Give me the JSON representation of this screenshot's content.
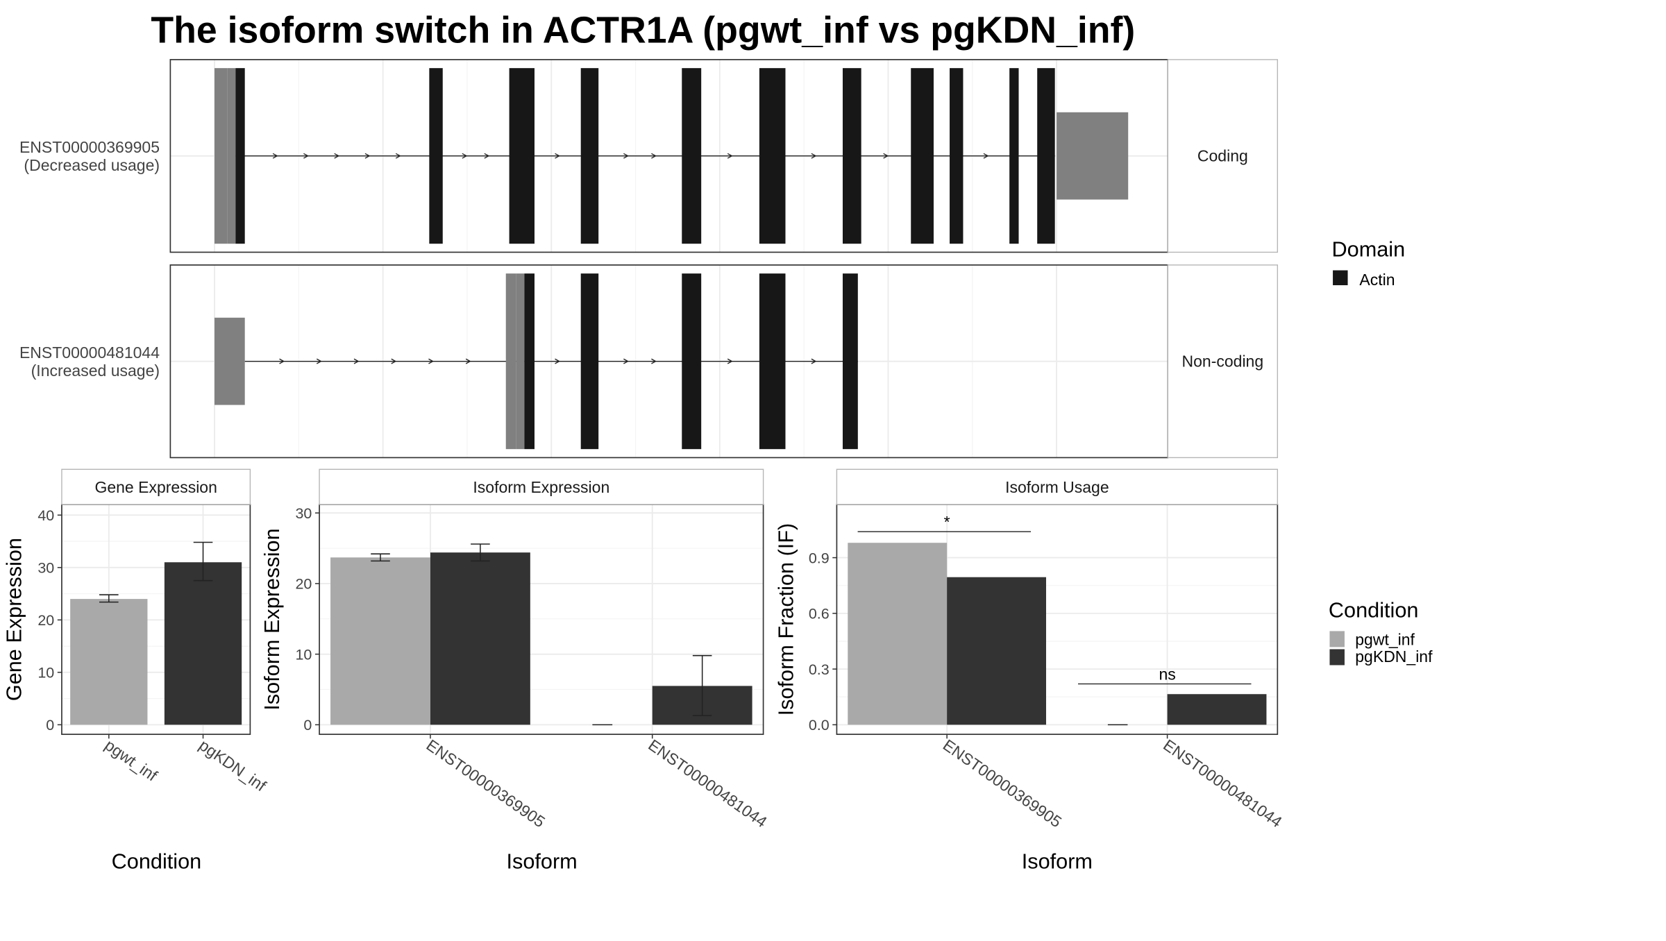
{
  "title": "The isoform switch in ACTR1A (pgwt_inf vs pgKDN_inf)",
  "colors": {
    "utr": "#808080",
    "cds": "#171717",
    "pgwt_inf": "#a9a9a9",
    "pgKDN_inf": "#333333",
    "grid": "#ebebeb",
    "strip_text": "#1a1a1a"
  },
  "structure": {
    "genomic_range": [
      0,
      1000
    ],
    "transcripts": [
      {
        "id": "ENST00000369905",
        "usage_label": "(Decreased usage)",
        "facet_label": "Coding",
        "utr_exons": [
          [
            0,
            15
          ],
          [
            15,
            25
          ],
          [
            1000,
            1085
          ]
        ],
        "cds_exons": [
          [
            25,
            36
          ],
          [
            255,
            271
          ],
          [
            350,
            380
          ],
          [
            435,
            456
          ],
          [
            555,
            578
          ],
          [
            647,
            678
          ],
          [
            746,
            768
          ],
          [
            827,
            854
          ],
          [
            873,
            889
          ],
          [
            944,
            955
          ],
          [
            977,
            998
          ]
        ],
        "intron_range": [
          25,
          998
        ]
      },
      {
        "id": "ENST00000481044",
        "usage_label": "(Increased usage)",
        "facet_label": "Non-coding",
        "utr_exons": [
          [
            0,
            36
          ],
          [
            346,
            358
          ],
          [
            358,
            368
          ]
        ],
        "cds_exons": [
          [
            368,
            380
          ],
          [
            435,
            456
          ],
          [
            555,
            578
          ],
          [
            647,
            678
          ],
          [
            746,
            764
          ]
        ],
        "intron_range": [
          36,
          764
        ]
      }
    ],
    "legend": {
      "title": "Domain",
      "items": [
        {
          "label": "Actin",
          "color": "#171717"
        }
      ]
    }
  },
  "chart_data": [
    {
      "type": "bar",
      "panel": "Gene Expression",
      "categories": [
        "pgwt_inf",
        "pgKDN_inf"
      ],
      "values": [
        24.0,
        31.0
      ],
      "error_low": [
        23.4,
        27.5
      ],
      "error_high": [
        24.8,
        34.8
      ],
      "xlabel": "Condition",
      "ylabel": "Gene Expression",
      "ylim": [
        0,
        42
      ],
      "yticks": [
        "0",
        "10",
        "20",
        "30",
        "40"
      ]
    },
    {
      "type": "bar",
      "panel": "Isoform Expression",
      "categories": [
        "ENST00000369905",
        "ENST00000481044"
      ],
      "series": [
        {
          "name": "pgwt_inf",
          "values": [
            23.7,
            0.0
          ],
          "error_low": [
            23.2,
            0.0
          ],
          "error_high": [
            24.2,
            0.0
          ]
        },
        {
          "name": "pgKDN_inf",
          "values": [
            24.4,
            5.5
          ],
          "error_low": [
            23.2,
            1.3
          ],
          "error_high": [
            25.6,
            9.8
          ]
        }
      ],
      "xlabel": "Isoform",
      "ylabel": "Isoform Expression",
      "ylim": [
        0,
        30.5
      ],
      "yticks": [
        "0",
        "10",
        "20",
        "30"
      ]
    },
    {
      "type": "bar",
      "panel": "Isoform Usage",
      "categories": [
        "ENST00000369905",
        "ENST00000481044"
      ],
      "series": [
        {
          "name": "pgwt_inf",
          "values": [
            0.98,
            0.0
          ]
        },
        {
          "name": "pgKDN_inf",
          "values": [
            0.795,
            0.165
          ]
        }
      ],
      "significance": [
        "*",
        "ns"
      ],
      "significance_y": [
        1.04,
        0.22
      ],
      "xlabel": "Isoform",
      "ylabel": "Isoform Fraction (IF)",
      "ylim": [
        -0.05,
        1.2
      ],
      "yticks": [
        "0.0",
        "0.3",
        "0.6",
        "0.9"
      ]
    }
  ],
  "condition_legend": {
    "title": "Condition",
    "items": [
      {
        "label": "pgwt_inf",
        "color": "#a9a9a9"
      },
      {
        "label": "pgKDN_inf",
        "color": "#333333"
      }
    ]
  }
}
